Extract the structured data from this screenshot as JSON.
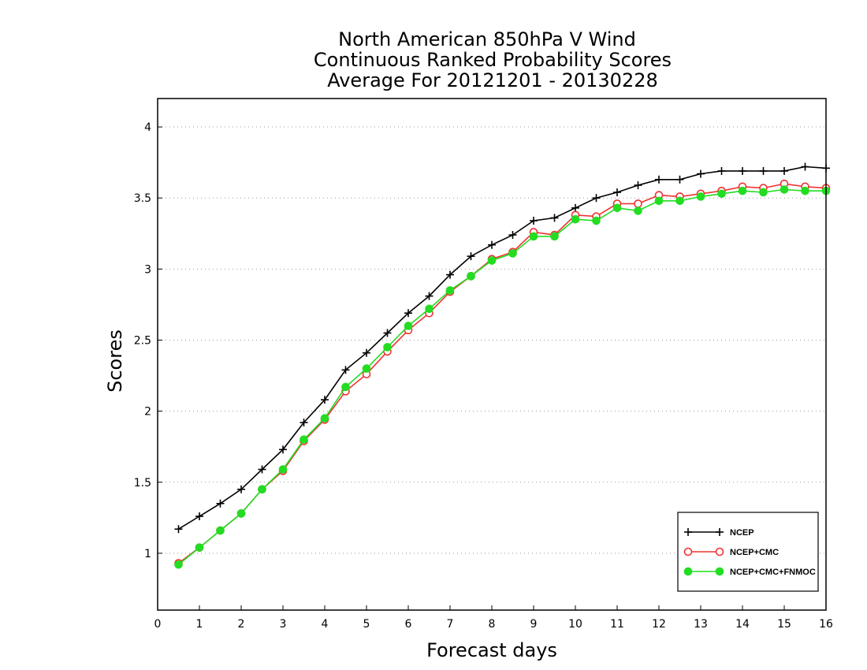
{
  "chart_data": {
    "type": "line",
    "title": [
      "North American 850hPa V Wind",
      "Continuous Ranked Probability Scores",
      "Average For 20121201 - 20130228"
    ],
    "xlabel": "Forecast days",
    "ylabel": "Scores",
    "xlim": [
      0,
      16
    ],
    "ylim": [
      0.6,
      4.2
    ],
    "x_ticks": [
      "0",
      "1",
      "2",
      "3",
      "4",
      "5",
      "6",
      "7",
      "8",
      "9",
      "10",
      "11",
      "12",
      "13",
      "14",
      "15",
      "16"
    ],
    "y_ticks": [
      1,
      1.5,
      2,
      2.5,
      3,
      3.5,
      4
    ],
    "y_tick_labels": [
      "1",
      "1.5",
      "2",
      "2.5",
      "3",
      "3.5",
      "4"
    ],
    "grid": "horizontal dotted",
    "legend_position": "bottom-right",
    "x": [
      0.5,
      1,
      1.5,
      2,
      2.5,
      3,
      3.5,
      4,
      4.5,
      5,
      5.5,
      6,
      6.5,
      7,
      7.5,
      8,
      8.5,
      9,
      9.5,
      10,
      10.5,
      11,
      11.5,
      12,
      12.5,
      13,
      13.5,
      14,
      14.5,
      15,
      15.5,
      16
    ],
    "series": [
      {
        "name": "NCEP",
        "color": "#000000",
        "marker": "plus",
        "values": [
          1.17,
          1.26,
          1.35,
          1.45,
          1.59,
          1.73,
          1.92,
          2.08,
          2.29,
          2.41,
          2.55,
          2.69,
          2.81,
          2.96,
          3.09,
          3.17,
          3.24,
          3.34,
          3.36,
          3.43,
          3.5,
          3.54,
          3.59,
          3.63,
          3.63,
          3.67,
          3.69,
          3.69,
          3.69,
          3.69,
          3.72,
          3.71
        ]
      },
      {
        "name": "NCEP+CMC",
        "color": "#ee3333",
        "marker": "open-circle",
        "values": [
          0.93,
          1.04,
          1.16,
          1.28,
          1.45,
          1.58,
          1.79,
          1.94,
          2.14,
          2.26,
          2.42,
          2.57,
          2.69,
          2.84,
          2.95,
          3.07,
          3.12,
          3.26,
          3.24,
          3.38,
          3.37,
          3.46,
          3.46,
          3.52,
          3.51,
          3.53,
          3.55,
          3.58,
          3.57,
          3.6,
          3.58,
          3.57
        ]
      },
      {
        "name": "NCEP+CMC+FNMOC",
        "color": "#22dd22",
        "marker": "filled-circle",
        "values": [
          0.92,
          1.04,
          1.16,
          1.28,
          1.45,
          1.59,
          1.8,
          1.95,
          2.17,
          2.3,
          2.45,
          2.6,
          2.72,
          2.85,
          2.95,
          3.06,
          3.11,
          3.23,
          3.23,
          3.35,
          3.34,
          3.43,
          3.41,
          3.48,
          3.48,
          3.51,
          3.53,
          3.55,
          3.54,
          3.56,
          3.55,
          3.55
        ]
      }
    ]
  }
}
